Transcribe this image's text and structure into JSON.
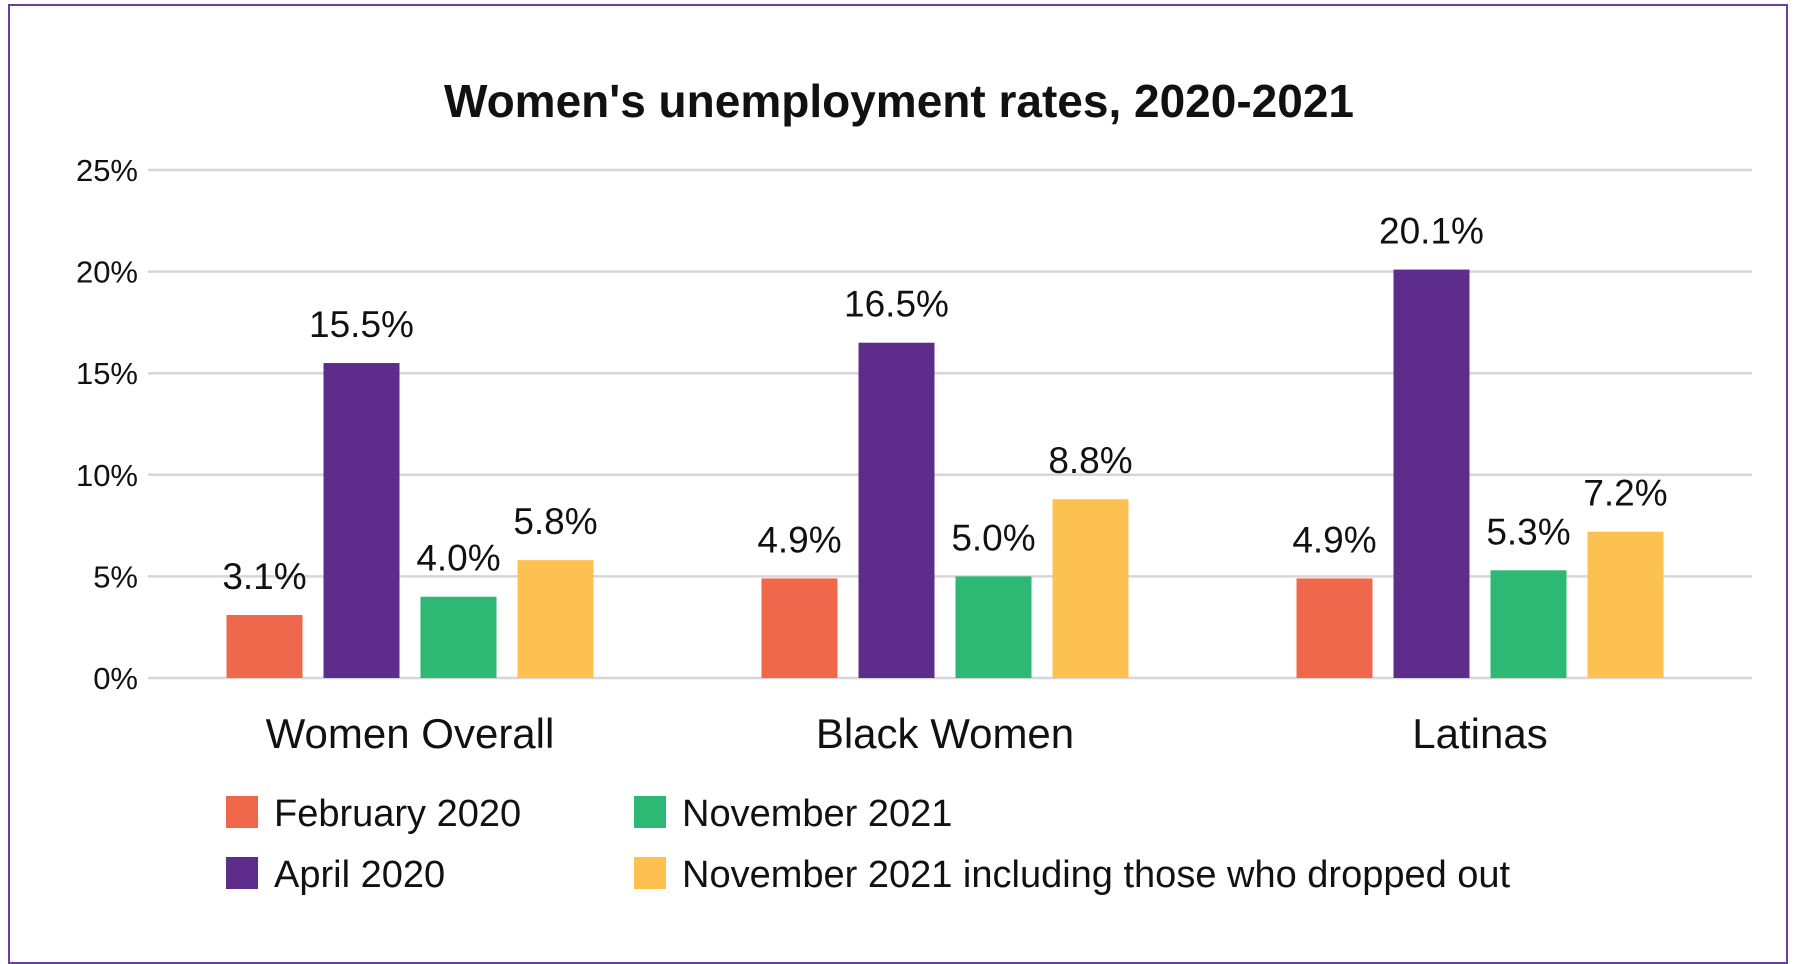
{
  "chart_data": {
    "type": "bar",
    "title": "Women's unemployment rates, 2020-2021",
    "xlabel": "",
    "ylabel": "",
    "ylim": [
      0,
      25
    ],
    "yticks": [
      "0%",
      "5%",
      "10%",
      "15%",
      "20%",
      "25%"
    ],
    "grid": true,
    "legend_position": "bottom",
    "categories": [
      "Women Overall",
      "Black Women",
      "Latinas"
    ],
    "series": [
      {
        "name": "February 2020",
        "color": "#f0684b",
        "values": [
          3.1,
          4.9,
          4.9
        ],
        "labels": [
          "3.1%",
          "4.9%",
          "4.9%"
        ]
      },
      {
        "name": "April 2020",
        "color": "#5e2d8c",
        "values": [
          15.5,
          16.5,
          20.1
        ],
        "labels": [
          "15.5%",
          "16.5%",
          "20.1%"
        ]
      },
      {
        "name": "November 2021",
        "color": "#2db873",
        "values": [
          4.0,
          5.0,
          5.3
        ],
        "labels": [
          "4.0%",
          "5.0%",
          "5.3%"
        ]
      },
      {
        "name": "November 2021 including those who dropped out",
        "color": "#fdc152",
        "values": [
          5.8,
          8.8,
          7.2
        ],
        "labels": [
          "5.8%",
          "8.8%",
          "7.2%"
        ]
      }
    ]
  }
}
